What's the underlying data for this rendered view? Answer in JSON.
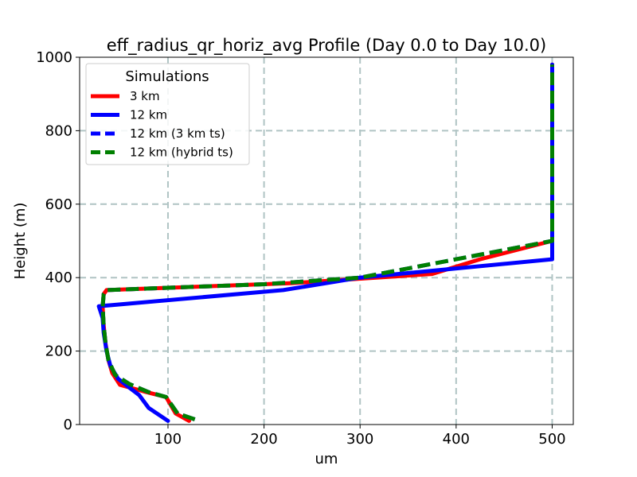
{
  "chart_data": {
    "type": "line",
    "title": "eff_radius_qr_horiz_avg Profile (Day 0.0 to Day 10.0)",
    "xlabel": "um",
    "ylabel": "Height (m)",
    "xlim": [
      8,
      522
    ],
    "ylim": [
      0,
      1000
    ],
    "xticks": [
      100,
      200,
      300,
      400,
      500
    ],
    "yticks": [
      0,
      200,
      400,
      600,
      800,
      1000
    ],
    "grid": true,
    "legend": {
      "title": "Simulations",
      "location": "top-left"
    },
    "series": [
      {
        "name": "3 km",
        "color": "#ff0000",
        "style": "solid",
        "points": [
          [
            122,
            10
          ],
          [
            108,
            30
          ],
          [
            98,
            75
          ],
          [
            75,
            90
          ],
          [
            50,
            108
          ],
          [
            42,
            140
          ],
          [
            38,
            175
          ],
          [
            35,
            220
          ],
          [
            33,
            270
          ],
          [
            32,
            320
          ],
          [
            33,
            355
          ],
          [
            36,
            366
          ],
          [
            230,
            385
          ],
          [
            375,
            410
          ],
          [
            425,
            450
          ],
          [
            500,
            500
          ],
          [
            500,
            980
          ]
        ]
      },
      {
        "name": "12 km",
        "color": "#0000ff",
        "style": "solid",
        "points": [
          [
            100,
            10
          ],
          [
            80,
            45
          ],
          [
            70,
            80
          ],
          [
            60,
            100
          ],
          [
            48,
            125
          ],
          [
            40,
            160
          ],
          [
            36,
            200
          ],
          [
            33,
            250
          ],
          [
            32,
            290
          ],
          [
            28,
            322
          ],
          [
            220,
            366
          ],
          [
            300,
            400
          ],
          [
            380,
            420
          ],
          [
            500,
            450
          ],
          [
            500,
            980
          ]
        ]
      },
      {
        "name": "12 km (3 km ts)",
        "color": "#0000ff",
        "style": "dashed",
        "points": [
          [
            128,
            14
          ],
          [
            110,
            30
          ],
          [
            98,
            75
          ],
          [
            80,
            88
          ],
          [
            60,
            110
          ],
          [
            45,
            135
          ],
          [
            38,
            175
          ],
          [
            35,
            220
          ],
          [
            33,
            270
          ],
          [
            32,
            320
          ],
          [
            33,
            355
          ],
          [
            36,
            366
          ],
          [
            200,
            382
          ],
          [
            300,
            400
          ],
          [
            400,
            450
          ],
          [
            500,
            500
          ],
          [
            500,
            980
          ]
        ]
      },
      {
        "name": "12 km (hybrid ts)",
        "color": "#008000",
        "style": "dashed",
        "points": [
          [
            128,
            14
          ],
          [
            110,
            30
          ],
          [
            98,
            75
          ],
          [
            80,
            88
          ],
          [
            60,
            110
          ],
          [
            45,
            135
          ],
          [
            38,
            175
          ],
          [
            35,
            220
          ],
          [
            33,
            270
          ],
          [
            32,
            320
          ],
          [
            33,
            355
          ],
          [
            36,
            366
          ],
          [
            200,
            382
          ],
          [
            300,
            400
          ],
          [
            400,
            450
          ],
          [
            500,
            500
          ],
          [
            500,
            980
          ]
        ]
      }
    ]
  }
}
